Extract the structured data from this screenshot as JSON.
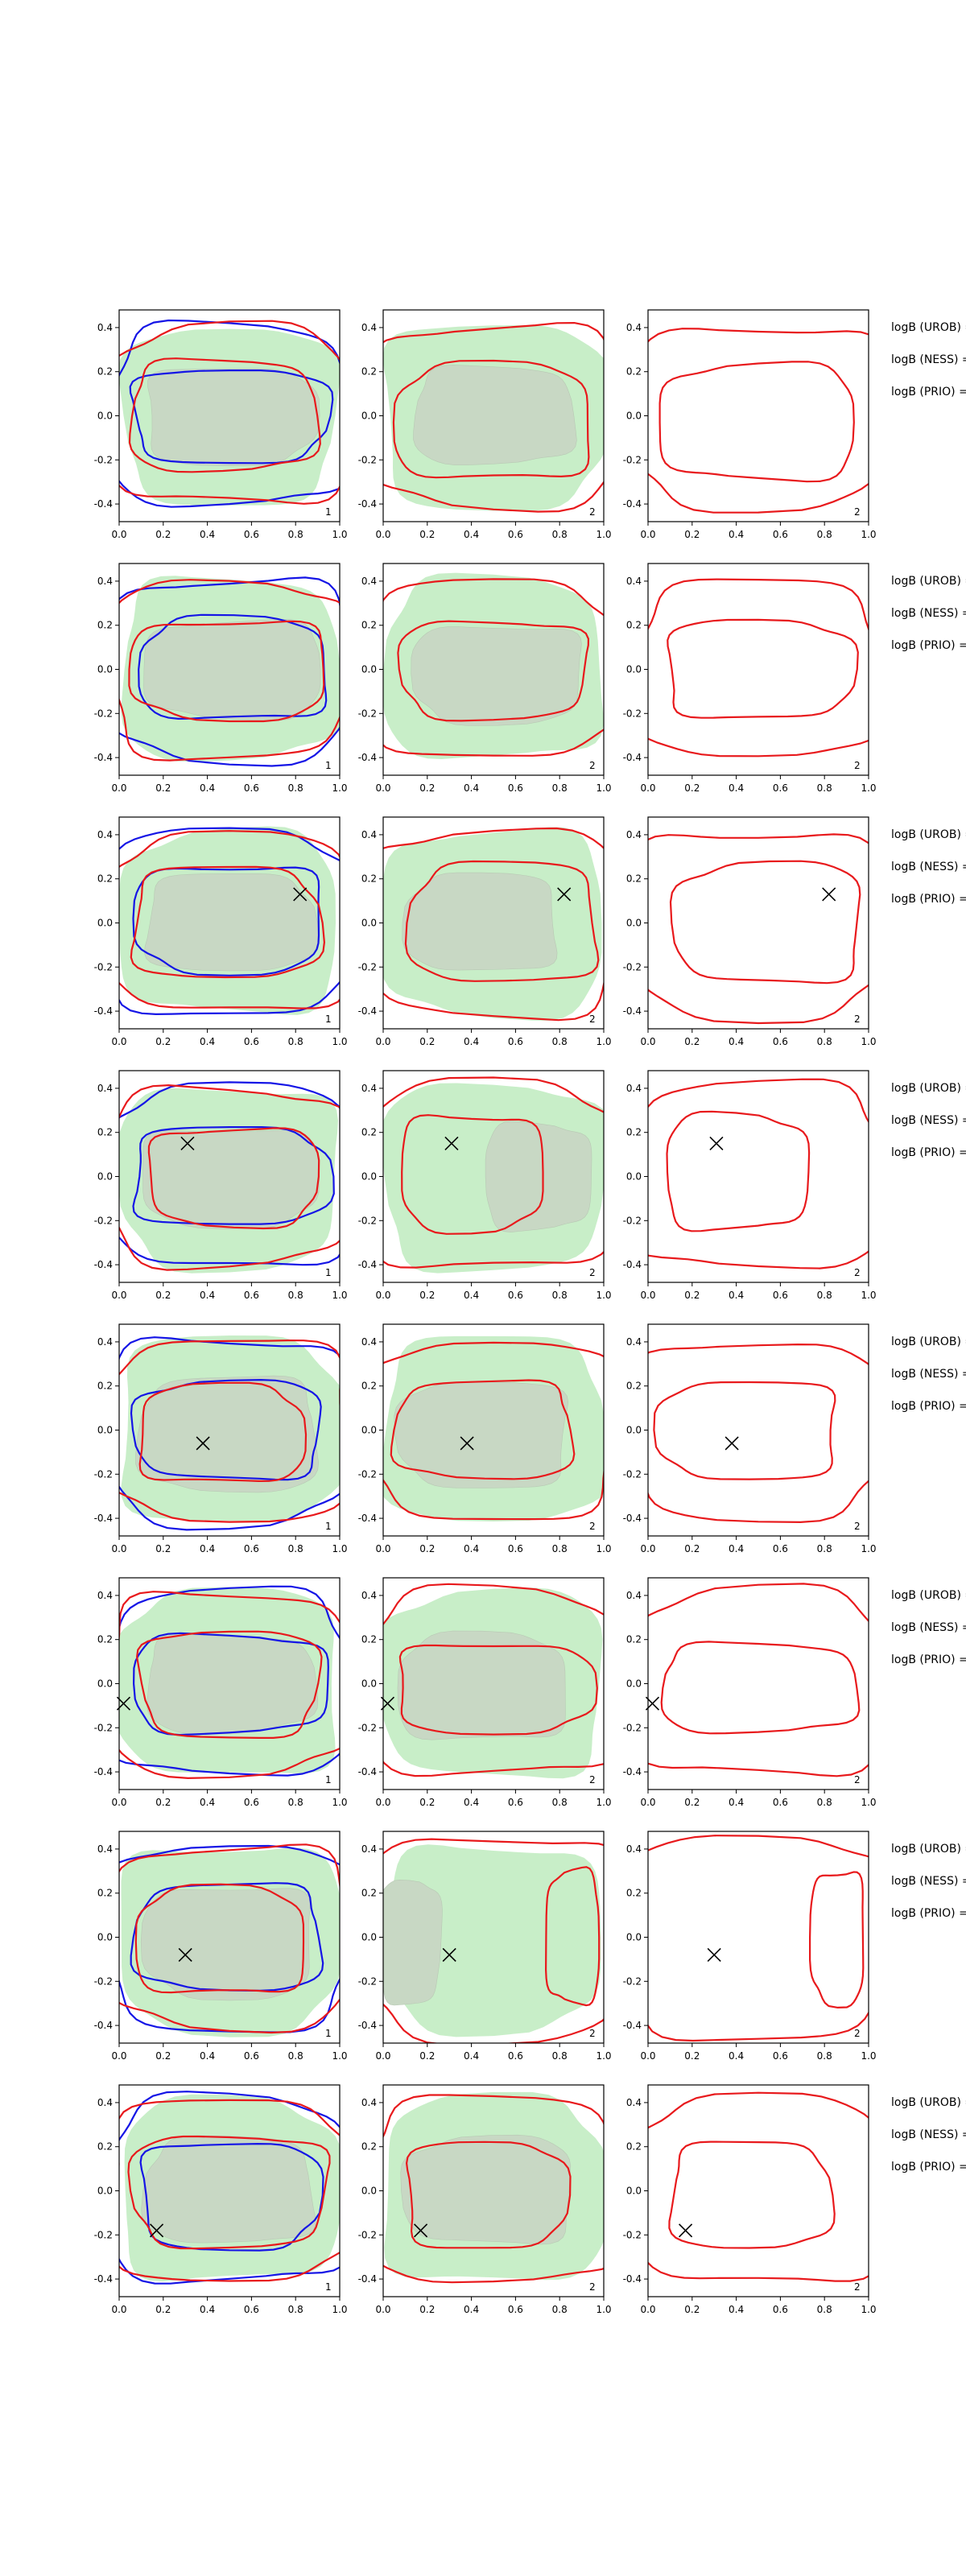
{
  "chart_data": {
    "type": "contour",
    "layout": {
      "rows": 8,
      "cols": 3
    },
    "axes": {
      "xlim": [
        0.0,
        1.0
      ],
      "ylim": [
        -0.48,
        0.48
      ],
      "xticks": [
        "0.0",
        "0.2",
        "0.4",
        "0.6",
        "0.8",
        "1.0"
      ],
      "yticks": [
        "0.4",
        "0.2",
        "0.0",
        "-0.2",
        "-0.4"
      ]
    },
    "colors": {
      "green_fill": "#c8eec8",
      "grey_fill": "#c8d8c4",
      "red": "#e8191c",
      "blue": "#1515e6",
      "axes": "#000000",
      "marker": "#000000"
    },
    "row_labels": [
      "logB (UROB) =",
      "logB (NESS) =",
      "logB (PRIO) ="
    ],
    "panels": [
      {
        "row": 0,
        "col": 0,
        "corner": "1",
        "marker": null,
        "green": {
          "cx": 0.5,
          "cy": 0.0,
          "rx": 0.48,
          "ry": 0.4
        },
        "grey": {
          "cx": 0.5,
          "cy": 0.0,
          "rx": 0.38,
          "ry": 0.22
        },
        "blue": [
          {
            "cx": 0.5,
            "cy": 0.0,
            "rx": 0.44,
            "ry": 0.21
          },
          {
            "cx": 0.5,
            "cy": 0.0,
            "rx": 0.54,
            "ry": 0.41
          }
        ],
        "red": [
          {
            "cx": 0.47,
            "cy": 0.0,
            "rx": 0.42,
            "ry": 0.25
          },
          {
            "cx": 0.5,
            "cy": 0.0,
            "rx": 0.55,
            "ry": 0.4
          }
        ]
      },
      {
        "row": 0,
        "col": 1,
        "corner": "2",
        "marker": null,
        "green": {
          "cx": 0.5,
          "cy": 0.0,
          "rx": 0.5,
          "ry": 0.42
        },
        "grey": {
          "cx": 0.5,
          "cy": 0.0,
          "rx": 0.36,
          "ry": 0.22
        },
        "red": [
          {
            "cx": 0.5,
            "cy": -0.03,
            "rx": 0.44,
            "ry": 0.26
          },
          {
            "cx": 0.5,
            "cy": 0.0,
            "rx": 0.58,
            "ry": 0.41
          }
        ]
      },
      {
        "row": 0,
        "col": 2,
        "corner": "2",
        "marker": null,
        "red": [
          {
            "cx": 0.5,
            "cy": -0.03,
            "rx": 0.44,
            "ry": 0.26
          },
          {
            "cx": 0.5,
            "cy": 0.0,
            "rx": 0.58,
            "ry": 0.41
          }
        ]
      },
      {
        "row": 1,
        "col": 0,
        "corner": "1",
        "marker": null,
        "green": {
          "cx": 0.5,
          "cy": 0.0,
          "rx": 0.49,
          "ry": 0.41
        },
        "grey": {
          "cx": 0.52,
          "cy": 0.0,
          "rx": 0.4,
          "ry": 0.22
        },
        "blue": [
          {
            "cx": 0.52,
            "cy": 0.0,
            "rx": 0.42,
            "ry": 0.23
          },
          {
            "cx": 0.5,
            "cy": 0.0,
            "rx": 0.55,
            "ry": 0.41
          }
        ],
        "red": [
          {
            "cx": 0.5,
            "cy": 0.0,
            "rx": 0.44,
            "ry": 0.22
          },
          {
            "cx": 0.5,
            "cy": 0.0,
            "rx": 0.54,
            "ry": 0.4
          }
        ]
      },
      {
        "row": 1,
        "col": 1,
        "corner": "2",
        "marker": null,
        "green": {
          "cx": 0.5,
          "cy": 0.0,
          "rx": 0.49,
          "ry": 0.41
        },
        "grey": {
          "cx": 0.52,
          "cy": -0.02,
          "rx": 0.38,
          "ry": 0.22
        },
        "red": [
          {
            "cx": 0.5,
            "cy": 0.0,
            "rx": 0.42,
            "ry": 0.22
          },
          {
            "cx": 0.5,
            "cy": 0.0,
            "rx": 0.55,
            "ry": 0.4
          }
        ]
      },
      {
        "row": 1,
        "col": 2,
        "corner": "2",
        "marker": null,
        "red": [
          {
            "cx": 0.5,
            "cy": 0.0,
            "rx": 0.42,
            "ry": 0.22
          },
          {
            "cx": 0.5,
            "cy": 0.0,
            "rx": 0.55,
            "ry": 0.4
          }
        ]
      },
      {
        "row": 2,
        "col": 0,
        "corner": "1",
        "marker": {
          "x": 0.82,
          "y": 0.13
        },
        "green": {
          "cx": 0.5,
          "cy": 0.0,
          "rx": 0.49,
          "ry": 0.41
        },
        "grey": {
          "cx": 0.5,
          "cy": 0.0,
          "rx": 0.38,
          "ry": 0.22
        },
        "blue": [
          {
            "cx": 0.5,
            "cy": 0.02,
            "rx": 0.42,
            "ry": 0.24
          },
          {
            "cx": 0.5,
            "cy": 0.0,
            "rx": 0.55,
            "ry": 0.42
          }
        ],
        "red": [
          {
            "cx": 0.48,
            "cy": 0.0,
            "rx": 0.42,
            "ry": 0.25
          },
          {
            "cx": 0.5,
            "cy": 0.0,
            "rx": 0.55,
            "ry": 0.4
          }
        ]
      },
      {
        "row": 2,
        "col": 1,
        "corner": "2",
        "marker": {
          "x": 0.82,
          "y": 0.13
        },
        "green": {
          "cx": 0.5,
          "cy": 0.0,
          "rx": 0.5,
          "ry": 0.42
        },
        "grey": {
          "cx": 0.45,
          "cy": 0.0,
          "rx": 0.34,
          "ry": 0.22
        },
        "red": [
          {
            "cx": 0.55,
            "cy": 0.0,
            "rx": 0.42,
            "ry": 0.27
          },
          {
            "cx": 0.5,
            "cy": 0.0,
            "rx": 0.58,
            "ry": 0.42
          }
        ]
      },
      {
        "row": 2,
        "col": 2,
        "corner": "2",
        "marker": {
          "x": 0.82,
          "y": 0.13
        },
        "red": [
          {
            "cx": 0.55,
            "cy": 0.0,
            "rx": 0.42,
            "ry": 0.27
          },
          {
            "cx": 0.5,
            "cy": 0.0,
            "rx": 0.58,
            "ry": 0.42
          }
        ]
      },
      {
        "row": 3,
        "col": 0,
        "corner": "1",
        "marker": {
          "x": 0.31,
          "y": 0.15
        },
        "green": {
          "cx": 0.5,
          "cy": 0.0,
          "rx": 0.49,
          "ry": 0.41
        },
        "grey": {
          "cx": 0.5,
          "cy": 0.0,
          "rx": 0.4,
          "ry": 0.22
        },
        "blue": [
          {
            "cx": 0.5,
            "cy": 0.0,
            "rx": 0.44,
            "ry": 0.22
          },
          {
            "cx": 0.5,
            "cy": 0.0,
            "rx": 0.55,
            "ry": 0.41
          }
        ],
        "red": [
          {
            "cx": 0.52,
            "cy": 0.0,
            "rx": 0.38,
            "ry": 0.22
          },
          {
            "cx": 0.5,
            "cy": 0.0,
            "rx": 0.55,
            "ry": 0.4
          }
        ]
      },
      {
        "row": 3,
        "col": 1,
        "corner": "2",
        "marker": {
          "x": 0.31,
          "y": 0.15
        },
        "green": {
          "cx": 0.5,
          "cy": 0.0,
          "rx": 0.5,
          "ry": 0.42
        },
        "grey": {
          "cx": 0.7,
          "cy": 0.0,
          "rx": 0.24,
          "ry": 0.24
        },
        "red": [
          {
            "cx": 0.4,
            "cy": 0.02,
            "rx": 0.32,
            "ry": 0.26
          },
          {
            "cx": 0.5,
            "cy": 0.0,
            "rx": 0.58,
            "ry": 0.42
          }
        ]
      },
      {
        "row": 3,
        "col": 2,
        "corner": "2",
        "marker": {
          "x": 0.31,
          "y": 0.15
        },
        "red": [
          {
            "cx": 0.4,
            "cy": 0.02,
            "rx": 0.32,
            "ry": 0.26
          },
          {
            "cx": 0.5,
            "cy": 0.0,
            "rx": 0.58,
            "ry": 0.42
          }
        ]
      },
      {
        "row": 4,
        "col": 0,
        "corner": "1",
        "marker": {
          "x": 0.38,
          "y": -0.06
        },
        "green": {
          "cx": 0.5,
          "cy": 0.0,
          "rx": 0.5,
          "ry": 0.42
        },
        "grey": {
          "cx": 0.5,
          "cy": -0.02,
          "rx": 0.4,
          "ry": 0.26
        },
        "blue": [
          {
            "cx": 0.5,
            "cy": 0.0,
            "rx": 0.42,
            "ry": 0.22
          },
          {
            "cx": 0.5,
            "cy": 0.0,
            "rx": 0.55,
            "ry": 0.42
          }
        ],
        "red": [
          {
            "cx": 0.46,
            "cy": -0.02,
            "rx": 0.37,
            "ry": 0.22
          },
          {
            "cx": 0.5,
            "cy": 0.0,
            "rx": 0.55,
            "ry": 0.41
          }
        ]
      },
      {
        "row": 4,
        "col": 1,
        "corner": "2",
        "marker": {
          "x": 0.38,
          "y": -0.06
        },
        "green": {
          "cx": 0.5,
          "cy": 0.0,
          "rx": 0.5,
          "ry": 0.42
        },
        "grey": {
          "cx": 0.46,
          "cy": -0.02,
          "rx": 0.38,
          "ry": 0.24
        },
        "red": [
          {
            "cx": 0.46,
            "cy": 0.0,
            "rx": 0.4,
            "ry": 0.22
          },
          {
            "cx": 0.5,
            "cy": 0.0,
            "rx": 0.56,
            "ry": 0.4
          }
        ]
      },
      {
        "row": 4,
        "col": 2,
        "corner": "2",
        "marker": {
          "x": 0.38,
          "y": -0.06
        },
        "red": [
          {
            "cx": 0.46,
            "cy": 0.0,
            "rx": 0.4,
            "ry": 0.22
          },
          {
            "cx": 0.5,
            "cy": 0.0,
            "rx": 0.56,
            "ry": 0.4
          }
        ]
      },
      {
        "row": 5,
        "col": 0,
        "corner": "1",
        "marker": {
          "x": 0.02,
          "y": -0.09
        },
        "green": {
          "cx": 0.5,
          "cy": 0.0,
          "rx": 0.5,
          "ry": 0.42
        },
        "grey": {
          "cx": 0.5,
          "cy": 0.0,
          "rx": 0.38,
          "ry": 0.22
        },
        "blue": [
          {
            "cx": 0.5,
            "cy": 0.0,
            "rx": 0.44,
            "ry": 0.22
          },
          {
            "cx": 0.5,
            "cy": 0.0,
            "rx": 0.55,
            "ry": 0.42
          }
        ],
        "red": [
          {
            "cx": 0.5,
            "cy": 0.0,
            "rx": 0.4,
            "ry": 0.24
          },
          {
            "cx": 0.5,
            "cy": 0.0,
            "rx": 0.55,
            "ry": 0.41
          }
        ]
      },
      {
        "row": 5,
        "col": 1,
        "corner": "2",
        "marker": {
          "x": 0.02,
          "y": -0.09
        },
        "green": {
          "cx": 0.5,
          "cy": 0.0,
          "rx": 0.5,
          "ry": 0.42
        },
        "grey": {
          "cx": 0.45,
          "cy": -0.02,
          "rx": 0.38,
          "ry": 0.24
        },
        "red": [
          {
            "cx": 0.5,
            "cy": -0.02,
            "rx": 0.44,
            "ry": 0.2
          },
          {
            "cx": 0.5,
            "cy": 0.0,
            "rx": 0.58,
            "ry": 0.42
          }
        ]
      },
      {
        "row": 5,
        "col": 2,
        "corner": "2",
        "marker": {
          "x": 0.02,
          "y": -0.09
        },
        "red": [
          {
            "cx": 0.5,
            "cy": -0.02,
            "rx": 0.44,
            "ry": 0.2
          },
          {
            "cx": 0.5,
            "cy": 0.0,
            "rx": 0.58,
            "ry": 0.42
          }
        ]
      },
      {
        "row": 6,
        "col": 0,
        "corner": "1",
        "marker": {
          "x": 0.3,
          "y": -0.08
        },
        "green": {
          "cx": 0.5,
          "cy": 0.0,
          "rx": 0.5,
          "ry": 0.42
        },
        "grey": {
          "cx": 0.5,
          "cy": -0.02,
          "rx": 0.38,
          "ry": 0.25
        },
        "blue": [
          {
            "cx": 0.5,
            "cy": 0.0,
            "rx": 0.42,
            "ry": 0.24
          },
          {
            "cx": 0.5,
            "cy": 0.0,
            "rx": 0.55,
            "ry": 0.42
          }
        ],
        "red": [
          {
            "cx": 0.46,
            "cy": -0.02,
            "rx": 0.38,
            "ry": 0.24
          },
          {
            "cx": 0.5,
            "cy": 0.0,
            "rx": 0.55,
            "ry": 0.41
          }
        ]
      },
      {
        "row": 6,
        "col": 1,
        "corner": "2",
        "marker": {
          "x": 0.3,
          "y": -0.08
        },
        "green": {
          "cx": 0.5,
          "cy": 0.0,
          "rx": 0.48,
          "ry": 0.42
        },
        "grey": {
          "cx": 0.12,
          "cy": -0.02,
          "rx": 0.14,
          "ry": 0.28
        },
        "red": [
          {
            "cx": 0.86,
            "cy": 0.0,
            "rx": 0.12,
            "ry": 0.3
          },
          {
            "cx": 0.5,
            "cy": 0.0,
            "rx": 0.6,
            "ry": 0.46
          }
        ]
      },
      {
        "row": 6,
        "col": 2,
        "corner": "2",
        "marker": {
          "x": 0.3,
          "y": -0.08
        },
        "red": [
          {
            "cx": 0.86,
            "cy": 0.0,
            "rx": 0.12,
            "ry": 0.3
          },
          {
            "cx": 0.5,
            "cy": 0.0,
            "rx": 0.6,
            "ry": 0.46
          }
        ]
      },
      {
        "row": 7,
        "col": 0,
        "corner": "1",
        "marker": {
          "x": 0.17,
          "y": -0.18
        },
        "green": {
          "cx": 0.5,
          "cy": 0.0,
          "rx": 0.49,
          "ry": 0.41
        },
        "grey": {
          "cx": 0.5,
          "cy": 0.0,
          "rx": 0.38,
          "ry": 0.24
        },
        "blue": [
          {
            "cx": 0.5,
            "cy": -0.02,
            "rx": 0.4,
            "ry": 0.24
          },
          {
            "cx": 0.5,
            "cy": 0.0,
            "rx": 0.55,
            "ry": 0.42
          }
        ],
        "red": [
          {
            "cx": 0.5,
            "cy": 0.0,
            "rx": 0.44,
            "ry": 0.25
          },
          {
            "cx": 0.5,
            "cy": 0.0,
            "rx": 0.55,
            "ry": 0.41
          }
        ]
      },
      {
        "row": 7,
        "col": 1,
        "corner": "2",
        "marker": {
          "x": 0.17,
          "y": -0.18
        },
        "green": {
          "cx": 0.5,
          "cy": 0.0,
          "rx": 0.5,
          "ry": 0.42
        },
        "grey": {
          "cx": 0.48,
          "cy": 0.0,
          "rx": 0.38,
          "ry": 0.24
        },
        "red": [
          {
            "cx": 0.46,
            "cy": -0.02,
            "rx": 0.36,
            "ry": 0.24
          },
          {
            "cx": 0.5,
            "cy": 0.0,
            "rx": 0.58,
            "ry": 0.42
          }
        ]
      },
      {
        "row": 7,
        "col": 2,
        "corner": "2",
        "marker": {
          "x": 0.17,
          "y": -0.18
        },
        "red": [
          {
            "cx": 0.46,
            "cy": -0.02,
            "rx": 0.36,
            "ry": 0.24
          },
          {
            "cx": 0.5,
            "cy": 0.0,
            "rx": 0.58,
            "ry": 0.42
          }
        ]
      }
    ]
  }
}
